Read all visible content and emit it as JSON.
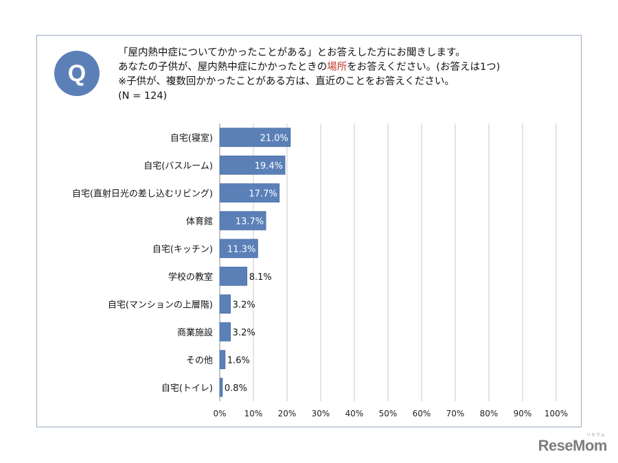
{
  "question": {
    "badge": "Q",
    "line1": "「屋内熱中症についてかかったことがある」とお答えした方にお聞きします。",
    "line2_pre": "あなたの子供が、屋内熱中症にかかったときの",
    "line2_highlight": "場所",
    "line2_post": "をお答えください。(お答えは1つ)",
    "line3": "※子供が、複数回かかったことがある方は、直近のことをお答えください。",
    "line4": "(N = 124)",
    "highlight_color": "#c0392b"
  },
  "logo": {
    "text": "ReseMom",
    "ruby": "リセマム"
  },
  "chart_data": {
    "type": "bar",
    "orientation": "horizontal",
    "categories": [
      "自宅(寝室)",
      "自宅(バスルーム)",
      "自宅(直射日光の差し込むリビング)",
      "体育館",
      "自宅(キッチン)",
      "学校の教室",
      "自宅(マンションの上層階)",
      "商業施設",
      "その他",
      "自宅(トイレ)"
    ],
    "values": [
      21.0,
      19.4,
      17.7,
      13.7,
      11.3,
      8.1,
      3.2,
      3.2,
      1.6,
      0.8
    ],
    "data_labels": [
      "21.0%",
      "19.4%",
      "17.7%",
      "13.7%",
      "11.3%",
      "8.1%",
      "3.2%",
      "3.2%",
      "1.6%",
      "0.8%"
    ],
    "xlim": [
      0,
      100
    ],
    "xticks": [
      "0%",
      "10%",
      "20%",
      "30%",
      "40%",
      "50%",
      "60%",
      "70%",
      "80%",
      "90%",
      "100%"
    ],
    "bar_color": "#5b80b8",
    "grid": true,
    "legend": "none"
  }
}
